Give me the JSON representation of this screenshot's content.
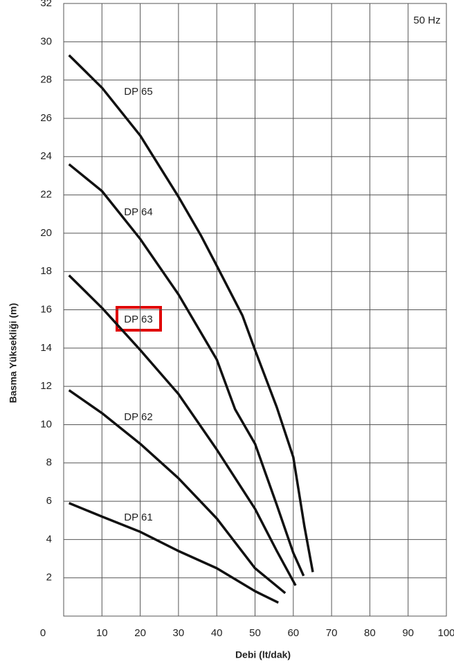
{
  "chart_data": {
    "type": "line",
    "x_label": "Debi (lt/dak)",
    "y_label": "Basma Yüksekliği (m)",
    "annotation": "50 Hz",
    "xlim": [
      0,
      100
    ],
    "xticks": [
      0,
      10,
      20,
      30,
      40,
      50,
      60,
      70,
      80,
      90,
      100
    ],
    "ylim": [
      0,
      32
    ],
    "yticks": [
      2,
      4,
      6,
      8,
      10,
      12,
      14,
      16,
      18,
      20,
      22,
      24,
      26,
      28,
      30,
      32
    ],
    "grid": true,
    "series": [
      {
        "name": "DP 65",
        "color": "#111111",
        "x": [
          1.4,
          10,
          20,
          30,
          35.8,
          40,
          46.7,
          50,
          55.7,
          60,
          62.9,
          65.1
        ],
        "values": [
          29.3,
          27.6,
          25.1,
          21.9,
          19.9,
          18.3,
          15.7,
          13.9,
          10.9,
          8.3,
          4.7,
          2.3
        ]
      },
      {
        "name": "DP 64",
        "color": "#111111",
        "x": [
          1.4,
          10,
          20,
          30,
          40,
          44.8,
          50,
          55.7,
          60,
          62.7
        ],
        "values": [
          23.6,
          22.2,
          19.7,
          16.8,
          13.4,
          10.8,
          9.0,
          5.8,
          3.3,
          2.1
        ]
      },
      {
        "name": "DP 63",
        "color": "#111111",
        "x": [
          1.4,
          10,
          20,
          30,
          40,
          50,
          55.7,
          60.6
        ],
        "values": [
          17.8,
          16.1,
          13.9,
          11.6,
          8.7,
          5.6,
          3.4,
          1.6
        ]
      },
      {
        "name": "DP 62",
        "color": "#111111",
        "x": [
          1.4,
          10,
          20,
          30,
          40,
          50,
          57.9
        ],
        "values": [
          11.8,
          10.6,
          9.0,
          7.2,
          5.1,
          2.5,
          1.2
        ]
      },
      {
        "name": "DP 61",
        "color": "#111111",
        "x": [
          1.4,
          10,
          20,
          30,
          40,
          50,
          56.1
        ],
        "values": [
          5.9,
          5.2,
          4.4,
          3.4,
          2.5,
          1.3,
          0.7
        ]
      }
    ]
  }
}
